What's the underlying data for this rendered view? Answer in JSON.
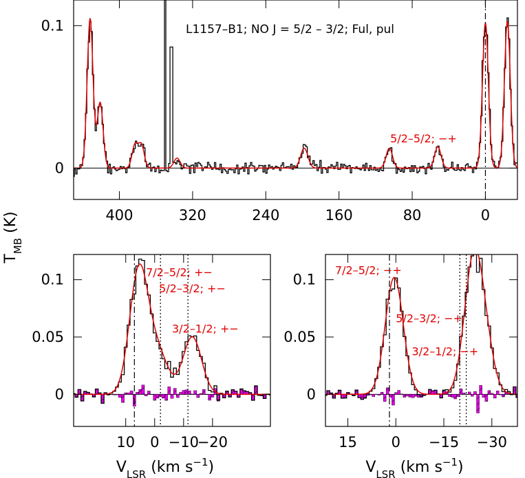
{
  "chart_data": [
    {
      "id": "top",
      "type": "line",
      "title": "L1157–B1; NO J = 5/2 – 3/2; Ful, pul",
      "xlim": [
        450,
        -35
      ],
      "ylim": [
        -0.022,
        0.118
      ],
      "xticks": [
        400,
        320,
        240,
        160,
        80,
        0
      ],
      "yticks": [
        0,
        0.1
      ],
      "yticklabels": [
        "0",
        "0.1"
      ],
      "ylabel": "T",
      "ylabel_sub": "MB",
      "ylabel_unit": " (K)",
      "annotations": [
        {
          "text": "5/2–5/2; −+",
          "x": 104,
          "y": 0.018
        }
      ],
      "vlines": [
        {
          "x": 0,
          "style": "dashdot"
        }
      ],
      "spikes": [
        {
          "x": 350,
          "top": 0.118
        },
        {
          "x": 343,
          "top": 0.085
        }
      ],
      "components": [
        {
          "x": 432,
          "amp": 0.105,
          "w": 3.2
        },
        {
          "x": 421,
          "amp": 0.046,
          "w": 3.2
        },
        {
          "x": 383,
          "amp": 0.016,
          "w": 3.2
        },
        {
          "x": 376,
          "amp": 0.016,
          "w": 3.2
        },
        {
          "x": 337,
          "amp": 0.007,
          "w": 3.5
        },
        {
          "x": 198,
          "amp": 0.014,
          "w": 4
        },
        {
          "x": 105,
          "amp": 0.014,
          "w": 3.5
        },
        {
          "x": 52,
          "amp": 0.015,
          "w": 3.5
        },
        {
          "x": 0,
          "amp": 0.102,
          "w": 3.2
        },
        {
          "x": -24,
          "amp": 0.103,
          "w": 3.2
        }
      ]
    },
    {
      "id": "bottom-left",
      "type": "line",
      "xlim": [
        28,
        -40
      ],
      "ylim": [
        -0.028,
        0.122
      ],
      "xticks": [
        10,
        0,
        -10,
        -20
      ],
      "xticklabels": [
        "10",
        "0",
        "−10",
        "−20"
      ],
      "yticks": [
        0,
        0.05,
        0.1
      ],
      "yticklabels": [
        "0",
        "0.05",
        "0.1"
      ],
      "xlabel": "V",
      "xlabel_sub": "LSR",
      "xlabel_unit": " (km s",
      "xlabel_sup": "−1",
      "xlabel_close": ")",
      "annotations": [
        {
          "text": "7/2–5/2; +−",
          "x": 3,
          "y": 0.103
        },
        {
          "text": "5/2–3/2; +−",
          "x": -1.5,
          "y": 0.089
        },
        {
          "text": "3/2–1/2; +−",
          "x": -6,
          "y": 0.054
        }
      ],
      "vlines": [
        {
          "x": 7,
          "style": "dashdot"
        },
        {
          "x": -2,
          "style": "dotted"
        },
        {
          "x": -11.5,
          "style": "dotted"
        }
      ],
      "components": [
        {
          "x": 5.5,
          "amp": 0.106,
          "w": 3.2
        },
        {
          "x": -1,
          "amp": 0.036,
          "w": 3.6
        },
        {
          "x": -13,
          "amp": 0.05,
          "w": 3.2
        }
      ]
    },
    {
      "id": "bottom-right",
      "type": "line",
      "xlim": [
        22,
        -38
      ],
      "ylim": [
        -0.028,
        0.122
      ],
      "xticks": [
        15,
        0,
        -15,
        -30
      ],
      "xticklabels": [
        "15",
        "0",
        "−15",
        "−30"
      ],
      "yticks": [
        0,
        0.05,
        0.1
      ],
      "yticklabels": [
        "0",
        "0.05",
        "0.1"
      ],
      "xlabel": "V",
      "xlabel_sub": "LSR",
      "xlabel_unit": " (km s",
      "xlabel_sup": "−1",
      "xlabel_close": ")",
      "annotations": [
        {
          "text": "7/2–5/2; −+",
          "x": 19,
          "y": 0.105
        },
        {
          "text": "5/2–3/2; −+",
          "x": 0,
          "y": 0.063
        },
        {
          "text": "3/2–1/2; −+",
          "x": -5,
          "y": 0.034
        }
      ],
      "vlines": [
        {
          "x": 2,
          "style": "dashdot"
        },
        {
          "x": -20,
          "style": "dotted"
        },
        {
          "x": -22,
          "style": "dotted"
        }
      ],
      "components": [
        {
          "x": 0.5,
          "amp": 0.102,
          "w": 2.8
        },
        {
          "x": -24,
          "amp": 0.103,
          "w": 2.8
        },
        {
          "x": -27.5,
          "amp": 0.045,
          "w": 2.8
        }
      ]
    }
  ]
}
